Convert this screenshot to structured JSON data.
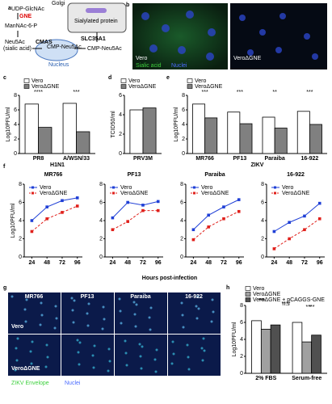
{
  "panel_letters": [
    "a",
    "b",
    "c",
    "d",
    "e",
    "f",
    "g",
    "h"
  ],
  "diagram": {
    "udp": "UDP-GlcNAc",
    "gne": "GNE",
    "mannac": "ManNAc-6-P",
    "neu5ac": "Neu5Ac",
    "sialic": "(sialic acid)",
    "cmas": "CMAS",
    "cmp_nucleus": "CMP-Neu5Ac",
    "nucleus": "Nucleus",
    "slc": "SLC35A1",
    "cmp_golgi": "CMP-Neu5Ac",
    "golgi": "Golgi",
    "protein": "Sialylated protein"
  },
  "images_b": {
    "panels": [
      "Vero",
      "VeroΔGNE"
    ],
    "stains": [
      "Sialic acid",
      "Nuclei"
    ]
  },
  "images_g": {
    "columns": [
      "MR766",
      "PF13",
      "Paraiba",
      "16-922"
    ],
    "rows": [
      "Vero",
      "VeroΔGNE"
    ],
    "stains": [
      "ZIKV Envelope",
      "Nuclei"
    ]
  },
  "shared_x_label": "Hours post-infection",
  "chart_data": [
    {
      "type": "bar",
      "y_label": "Log10PFU/ml",
      "categories": [
        "PR8",
        "A/WSN/33"
      ],
      "group_label": "H1N1",
      "ylim": [
        0,
        8
      ],
      "yticks": [
        0,
        2,
        4,
        6,
        8
      ],
      "series": [
        {
          "name": "Vero",
          "color": "#ffffff",
          "values": [
            6.8,
            6.9
          ]
        },
        {
          "name": "VeroΔGNE",
          "color": "#808080",
          "values": [
            3.6,
            3.0
          ]
        }
      ],
      "annotations": [
        "****",
        "***"
      ]
    },
    {
      "type": "bar",
      "y_label": "TCID50/ml",
      "categories": [
        "PRV3M"
      ],
      "ylim": [
        0,
        6
      ],
      "yticks": [
        0,
        2,
        4,
        6
      ],
      "series": [
        {
          "name": "Vero",
          "color": "#ffffff",
          "values": [
            4.5
          ]
        },
        {
          "name": "VeroΔGNE",
          "color": "#808080",
          "values": [
            4.7
          ]
        }
      ]
    },
    {
      "type": "bar",
      "y_label": "Log10PFU/ml",
      "categories": [
        "MR766",
        "PF13",
        "Paraiba",
        "16-922"
      ],
      "group_label": "ZIKV",
      "ylim": [
        0,
        8
      ],
      "yticks": [
        0,
        2,
        4,
        6,
        8
      ],
      "series": [
        {
          "name": "Vero",
          "color": "#ffffff",
          "values": [
            6.8,
            5.7,
            5.0,
            5.8
          ]
        },
        {
          "name": "VeroΔGNE",
          "color": "#808080",
          "values": [
            4.9,
            4.1,
            3.5,
            4.0
          ]
        }
      ],
      "annotations": [
        "***",
        "***",
        "**",
        "***"
      ]
    },
    {
      "type": "line",
      "title": "MR766",
      "y_label": "Log10PFU/ml",
      "x": [
        24,
        48,
        72,
        96
      ],
      "xlim": [
        12,
        104
      ],
      "xticks": [
        24,
        48,
        72,
        96
      ],
      "ylim": [
        0,
        8
      ],
      "yticks": [
        0,
        2,
        4,
        6,
        8
      ],
      "series": [
        {
          "name": "Vero",
          "color": "#1f3fd6",
          "dashed": false,
          "values": [
            4.0,
            5.5,
            6.2,
            6.5
          ]
        },
        {
          "name": "VeroΔGNE",
          "color": "#e0201b",
          "dashed": true,
          "values": [
            2.8,
            4.2,
            4.9,
            5.6
          ]
        }
      ]
    },
    {
      "type": "line",
      "title": "PF13",
      "x": [
        24,
        48,
        72,
        96
      ],
      "xlim": [
        12,
        104
      ],
      "xticks": [
        24,
        48,
        72,
        96
      ],
      "ylim": [
        0,
        8
      ],
      "yticks": [
        0,
        2,
        4,
        6,
        8
      ],
      "series": [
        {
          "name": "Vero",
          "color": "#1f3fd6",
          "dashed": false,
          "values": [
            4.3,
            6.0,
            5.7,
            6.1
          ]
        },
        {
          "name": "VeroΔGNE",
          "color": "#e0201b",
          "dashed": true,
          "values": [
            3.0,
            3.9,
            5.1,
            5.1
          ]
        }
      ]
    },
    {
      "type": "line",
      "title": "Paraiba",
      "x": [
        24,
        48,
        72,
        96
      ],
      "xlim": [
        12,
        104
      ],
      "xticks": [
        24,
        48,
        72,
        96
      ],
      "ylim": [
        0,
        8
      ],
      "yticks": [
        0,
        2,
        4,
        6,
        8
      ],
      "series": [
        {
          "name": "Vero",
          "color": "#1f3fd6",
          "dashed": false,
          "values": [
            3.0,
            4.6,
            5.5,
            6.3
          ]
        },
        {
          "name": "VeroΔGNE",
          "color": "#e0201b",
          "dashed": true,
          "values": [
            1.9,
            3.3,
            4.2,
            5.0
          ]
        }
      ]
    },
    {
      "type": "line",
      "title": "16-922",
      "x": [
        24,
        48,
        72,
        96
      ],
      "xlim": [
        12,
        104
      ],
      "xticks": [
        24,
        48,
        72,
        96
      ],
      "ylim": [
        0,
        8
      ],
      "yticks": [
        0,
        2,
        4,
        6,
        8
      ],
      "series": [
        {
          "name": "Vero",
          "color": "#1f3fd6",
          "dashed": false,
          "values": [
            2.8,
            3.8,
            4.5,
            5.9
          ]
        },
        {
          "name": "VeroΔGNE",
          "color": "#e0201b",
          "dashed": true,
          "values": [
            0.9,
            2.0,
            3.0,
            4.2
          ]
        }
      ]
    },
    {
      "type": "bar",
      "y_label": "Log10PFU/ml",
      "categories": [
        "2% FBS",
        "Serum-free"
      ],
      "ylim": [
        0,
        8
      ],
      "yticks": [
        0,
        2,
        4,
        6,
        8
      ],
      "series": [
        {
          "name": "Vero",
          "color": "#ffffff",
          "values": [
            6.2,
            6.0
          ]
        },
        {
          "name": "VeroΔGNE",
          "color": "#a0a0a0",
          "values": [
            5.2,
            3.7
          ]
        },
        {
          "name": "VeroΔGNE + pCAGGS-GNE",
          "color": "#505050",
          "values": [
            5.7,
            4.5
          ]
        }
      ],
      "annotations": [
        "***",
        "n.s",
        "*",
        "**",
        "****",
        "****"
      ]
    }
  ]
}
